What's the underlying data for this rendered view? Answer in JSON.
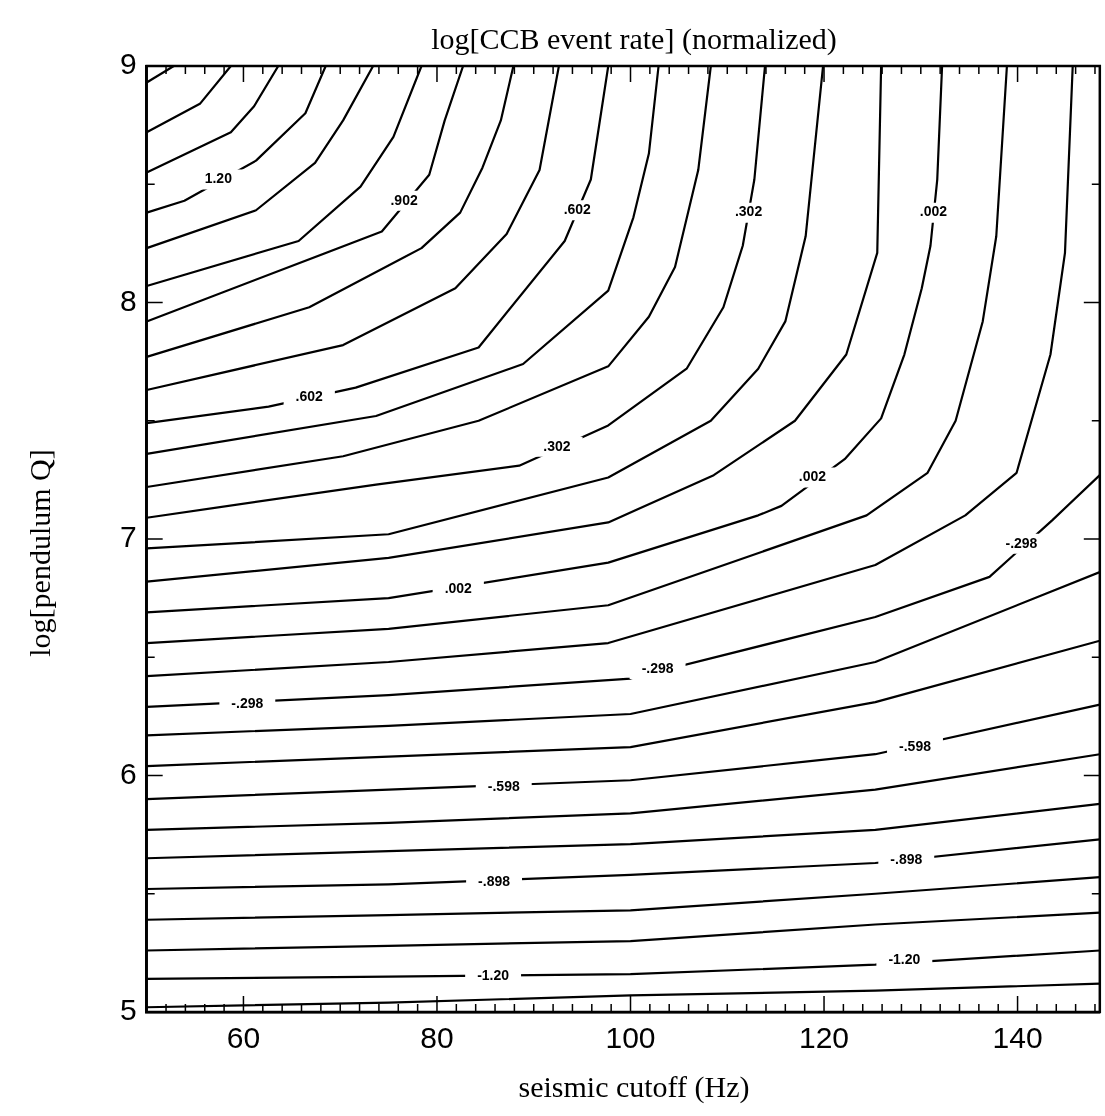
{
  "chart_data": {
    "type": "line",
    "title": "log[CCB event rate] (normalized)",
    "xlabel": "seismic cutoff (Hz)",
    "ylabel": "log[pendulum Q]",
    "xlim": [
      50,
      148.5
    ],
    "ylim": [
      5,
      9
    ],
    "xticks": [
      {
        "value": 52,
        "label": null
      },
      {
        "value": 54,
        "label": null
      },
      {
        "value": 56,
        "label": null
      },
      {
        "value": 58,
        "label": null
      },
      60,
      {
        "value": 62,
        "label": null
      },
      {
        "value": 64,
        "label": null
      },
      {
        "value": 66,
        "label": null
      },
      {
        "value": 68,
        "label": null
      },
      {
        "value": 70,
        "label": null
      },
      {
        "value": 72,
        "label": null
      },
      {
        "value": 74,
        "label": null
      },
      {
        "value": 76,
        "label": null
      },
      {
        "value": 78,
        "label": null
      },
      80,
      {
        "value": 82,
        "label": null
      },
      {
        "value": 84,
        "label": null
      },
      {
        "value": 86,
        "label": null
      },
      {
        "value": 88,
        "label": null
      },
      {
        "value": 90,
        "label": null
      },
      {
        "value": 92,
        "label": null
      },
      {
        "value": 94,
        "label": null
      },
      {
        "value": 96,
        "label": null
      },
      {
        "value": 98,
        "label": null
      },
      100,
      {
        "value": 102,
        "label": null
      },
      {
        "value": 104,
        "label": null
      },
      {
        "value": 106,
        "label": null
      },
      {
        "value": 108,
        "label": null
      },
      {
        "value": 110,
        "label": null
      },
      {
        "value": 112,
        "label": null
      },
      {
        "value": 114,
        "label": null
      },
      {
        "value": 116,
        "label": null
      },
      {
        "value": 118,
        "label": null
      },
      120,
      {
        "value": 122,
        "label": null
      },
      {
        "value": 124,
        "label": null
      },
      {
        "value": 126,
        "label": null
      },
      {
        "value": 128,
        "label": null
      },
      {
        "value": 130,
        "label": null
      },
      {
        "value": 132,
        "label": null
      },
      {
        "value": 134,
        "label": null
      },
      {
        "value": 136,
        "label": null
      },
      {
        "value": 138,
        "label": null
      },
      140,
      {
        "value": 142,
        "label": null
      },
      {
        "value": 144,
        "label": null
      },
      {
        "value": 146,
        "label": null
      },
      {
        "value": 148,
        "label": null
      }
    ],
    "yticks": [
      5,
      {
        "value": 5.5,
        "label": null
      },
      6,
      {
        "value": 6.5,
        "label": null
      },
      7,
      {
        "value": 7.5,
        "label": null
      },
      8,
      {
        "value": 8.5,
        "label": null
      },
      9
    ],
    "marker": "none",
    "line_style": "solid",
    "series": [
      {
        "color": "#000000",
        "x": [
          50,
          52.8
        ],
        "values": [
          8.93,
          9
        ]
      },
      {
        "color": "#000000",
        "x": [
          50,
          55.5,
          58.7
        ],
        "values": [
          8.72,
          8.84,
          9
        ]
      },
      {
        "color": "#000000",
        "x": [
          50,
          58.7,
          61.1,
          63.6
        ],
        "values": [
          8.55,
          8.72,
          8.83,
          9
        ]
      },
      {
        "color": "#000000",
        "x": [
          50,
          53.9,
          61.3,
          66.4,
          68.5
        ],
        "values": [
          8.38,
          8.43,
          8.6,
          8.8,
          9
        ]
      },
      {
        "color": "#000000",
        "x": [
          50,
          61.3,
          67.4,
          70.3,
          73.4
        ],
        "values": [
          8.23,
          8.39,
          8.59,
          8.77,
          9
        ]
      },
      {
        "color": "#000000",
        "x": [
          50,
          65.7,
          72.1,
          75.5,
          78.4
        ],
        "values": [
          8.07,
          8.26,
          8.49,
          8.7,
          9
        ]
      },
      {
        "color": "#000000",
        "x": [
          50,
          74.3,
          79.2,
          80.8,
          82.7
        ],
        "values": [
          7.92,
          8.3,
          8.54,
          8.77,
          9
        ]
      },
      {
        "color": "#000000",
        "x": [
          50,
          66.8,
          78.4,
          82.4,
          84.7,
          86.6,
          87.9
        ],
        "values": [
          7.77,
          7.98,
          8.23,
          8.38,
          8.57,
          8.77,
          9
        ]
      },
      {
        "color": "#000000",
        "x": [
          50,
          70.3,
          81.9,
          87.2,
          90.6,
          92.6
        ],
        "values": [
          7.63,
          7.82,
          8.06,
          8.29,
          8.56,
          9
        ]
      },
      {
        "color": "#000000",
        "x": [
          50,
          62.6,
          71.6,
          84.3,
          93.2,
          95.9,
          97.7
        ],
        "values": [
          7.49,
          7.56,
          7.64,
          7.81,
          8.26,
          8.52,
          9
        ]
      },
      {
        "color": "#000000",
        "x": [
          50,
          73.7,
          88.9,
          97.7,
          100.3,
          101.9,
          102.9
        ],
        "values": [
          7.36,
          7.52,
          7.74,
          8.05,
          8.36,
          8.63,
          9
        ]
      },
      {
        "color": "#000000",
        "x": [
          50,
          70.3,
          84.3,
          97.7,
          101.9,
          104.6,
          107,
          108.3
        ],
        "values": [
          7.22,
          7.35,
          7.5,
          7.73,
          7.94,
          8.15,
          8.56,
          9
        ]
      },
      {
        "color": "#000000",
        "x": [
          50,
          73.7,
          88.5,
          97.7,
          105.8,
          109.6,
          111.6,
          112.8,
          113.9
        ],
        "values": [
          7.09,
          7.23,
          7.31,
          7.48,
          7.72,
          7.98,
          8.24,
          8.52,
          9
        ]
      },
      {
        "color": "#000000",
        "x": [
          50,
          75,
          97.7,
          108.3,
          113.2,
          116,
          118.1,
          119.9
        ],
        "values": [
          6.96,
          7.02,
          7.26,
          7.5,
          7.72,
          7.92,
          8.28,
          9
        ]
      },
      {
        "color": "#000000",
        "x": [
          50,
          75,
          97.7,
          108.6,
          117,
          122.3,
          125.5,
          125.9
        ],
        "values": [
          6.82,
          6.92,
          7.07,
          7.27,
          7.5,
          7.78,
          8.21,
          9
        ]
      },
      {
        "color": "#000000",
        "x": [
          50,
          75,
          97.7,
          113.2,
          115.6,
          122.2,
          125.9,
          128.3,
          130.1,
          131,
          131.7,
          132.2
        ],
        "values": [
          6.69,
          6.75,
          6.9,
          7.1,
          7.14,
          7.34,
          7.51,
          7.78,
          8.06,
          8.24,
          8.52,
          9
        ]
      },
      {
        "color": "#000000",
        "x": [
          50,
          75,
          97.7,
          124.4,
          130.7,
          133.6,
          136.4,
          137.8,
          138.9
        ],
        "values": [
          6.56,
          6.62,
          6.72,
          7.1,
          7.28,
          7.5,
          7.92,
          8.28,
          9
        ]
      },
      {
        "color": "#000000",
        "x": [
          50,
          75,
          97.7,
          125.3,
          134.6,
          139.9,
          143.4,
          144.9,
          145.7
        ],
        "values": [
          6.42,
          6.48,
          6.56,
          6.89,
          7.1,
          7.28,
          7.78,
          8.21,
          9
        ]
      },
      {
        "color": "#000000",
        "x": [
          50,
          75,
          100,
          125.3,
          137.1,
          143.6,
          148.5
        ],
        "values": [
          6.29,
          6.34,
          6.41,
          6.67,
          6.84,
          7.08,
          7.27
        ]
      },
      {
        "color": "#000000",
        "x": [
          50,
          75,
          100,
          125.3,
          148.5
        ],
        "values": [
          6.17,
          6.21,
          6.26,
          6.48,
          6.86
        ]
      },
      {
        "color": "#000000",
        "x": [
          50,
          75,
          100,
          125.3,
          148.5
        ],
        "values": [
          6.04,
          6.08,
          6.12,
          6.31,
          6.57
        ]
      },
      {
        "color": "#000000",
        "x": [
          50,
          75,
          100,
          125.3,
          148.5
        ],
        "values": [
          5.9,
          5.94,
          5.98,
          6.09,
          6.3
        ]
      },
      {
        "color": "#000000",
        "x": [
          50,
          75,
          100,
          125.3,
          148.5
        ],
        "values": [
          5.77,
          5.8,
          5.84,
          5.94,
          6.09
        ]
      },
      {
        "color": "#000000",
        "x": [
          50,
          75,
          100,
          125.3,
          148.5
        ],
        "values": [
          5.65,
          5.68,
          5.71,
          5.77,
          5.88
        ]
      },
      {
        "color": "#000000",
        "x": [
          50,
          75,
          100,
          125.3,
          148.5
        ],
        "values": [
          5.52,
          5.54,
          5.58,
          5.63,
          5.73
        ]
      },
      {
        "color": "#000000",
        "x": [
          50,
          75,
          100,
          125.3,
          148.5
        ],
        "values": [
          5.39,
          5.41,
          5.43,
          5.5,
          5.57
        ]
      },
      {
        "color": "#000000",
        "x": [
          50,
          75,
          100,
          125.3,
          148.5
        ],
        "values": [
          5.26,
          5.28,
          5.3,
          5.37,
          5.42
        ]
      },
      {
        "color": "#000000",
        "x": [
          50,
          75,
          100,
          125.3,
          148.5
        ],
        "values": [
          5.14,
          5.15,
          5.16,
          5.2,
          5.26
        ]
      },
      {
        "color": "#000000",
        "x": [
          50,
          75,
          100,
          125.3,
          148.5
        ],
        "values": [
          5.02,
          5.04,
          5.07,
          5.09,
          5.12
        ]
      }
    ],
    "annotations": [
      {
        "text": "1.20",
        "x": 57.4,
        "y": 8.52
      },
      {
        "text": ".902",
        "x": 76.6,
        "y": 8.43
      },
      {
        "text": ".602",
        "x": 94.5,
        "y": 8.39
      },
      {
        "text": ".302",
        "x": 112.2,
        "y": 8.38
      },
      {
        "text": ".002",
        "x": 131.3,
        "y": 8.38
      },
      {
        "text": ".602",
        "x": 66.8,
        "y": 7.6
      },
      {
        "text": ".302",
        "x": 92.4,
        "y": 7.39
      },
      {
        "text": ".002",
        "x": 118.8,
        "y": 7.26
      },
      {
        "text": ".002",
        "x": 82.2,
        "y": 6.79
      },
      {
        "text": "-.298",
        "x": 60.4,
        "y": 6.3
      },
      {
        "text": "-.298",
        "x": 102.8,
        "y": 6.45
      },
      {
        "text": "-.298",
        "x": 140.4,
        "y": 6.98
      },
      {
        "text": "-.598",
        "x": 86.9,
        "y": 5.95
      },
      {
        "text": "-.598",
        "x": 129.4,
        "y": 6.12
      },
      {
        "text": "-.898",
        "x": 85.9,
        "y": 5.55
      },
      {
        "text": "-.898",
        "x": 128.5,
        "y": 5.64
      },
      {
        "text": "-1.20",
        "x": 85.8,
        "y": 5.15
      },
      {
        "text": "-1.20",
        "x": 128.3,
        "y": 5.22
      }
    ]
  }
}
